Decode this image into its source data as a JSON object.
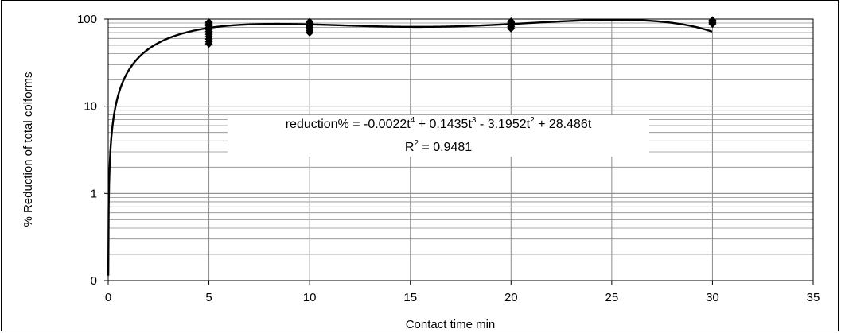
{
  "chart_data": {
    "type": "scatter",
    "title": "",
    "xlabel": "Contact time     min",
    "ylabel": "% Reduction of total colforms",
    "xlim": [
      0,
      35
    ],
    "y_scale": "log",
    "ylim_decades": [
      0.1,
      100
    ],
    "x_ticks": [
      "0",
      "5",
      "10",
      "15",
      "20",
      "25",
      "30",
      "35"
    ],
    "y_ticks": [
      "0",
      "1",
      "10",
      "100"
    ],
    "grid": true,
    "marker": "diamond",
    "series": [
      {
        "points": [
          {
            "x": 5,
            "y": 92
          },
          {
            "x": 5,
            "y": 88
          },
          {
            "x": 5,
            "y": 84
          },
          {
            "x": 5,
            "y": 80
          },
          {
            "x": 5,
            "y": 76
          },
          {
            "x": 5,
            "y": 72
          },
          {
            "x": 5,
            "y": 67
          },
          {
            "x": 5,
            "y": 63
          },
          {
            "x": 5,
            "y": 59
          },
          {
            "x": 5,
            "y": 55
          },
          {
            "x": 5,
            "y": 52
          },
          {
            "x": 10,
            "y": 93
          },
          {
            "x": 10,
            "y": 90
          },
          {
            "x": 10,
            "y": 87
          },
          {
            "x": 10,
            "y": 84
          },
          {
            "x": 10,
            "y": 81
          },
          {
            "x": 10,
            "y": 78
          },
          {
            "x": 10,
            "y": 74
          },
          {
            "x": 10,
            "y": 70
          },
          {
            "x": 20,
            "y": 94
          },
          {
            "x": 20,
            "y": 91
          },
          {
            "x": 20,
            "y": 88
          },
          {
            "x": 20,
            "y": 85
          },
          {
            "x": 20,
            "y": 82
          },
          {
            "x": 20,
            "y": 78
          },
          {
            "x": 30,
            "y": 97
          },
          {
            "x": 30,
            "y": 94
          },
          {
            "x": 30,
            "y": 91
          },
          {
            "x": 30,
            "y": 88
          }
        ]
      }
    ],
    "trendline": {
      "type": "polynomial",
      "coefficients": {
        "t4": -0.0022,
        "t3": 0.1435,
        "t2": -3.1952,
        "t1": 28.486
      },
      "range": [
        0,
        30
      ]
    },
    "equation": {
      "prefix": "reduction% = -0.0022t",
      "exp1": "4",
      "part2": " + 0.1435t",
      "exp2": "3",
      "part3": " - 3.1952t",
      "exp3": "2",
      "part4": " + 28.486t",
      "r2_prefix": "R",
      "r2_exp": "2",
      "r2_value": " = 0.9481"
    }
  }
}
